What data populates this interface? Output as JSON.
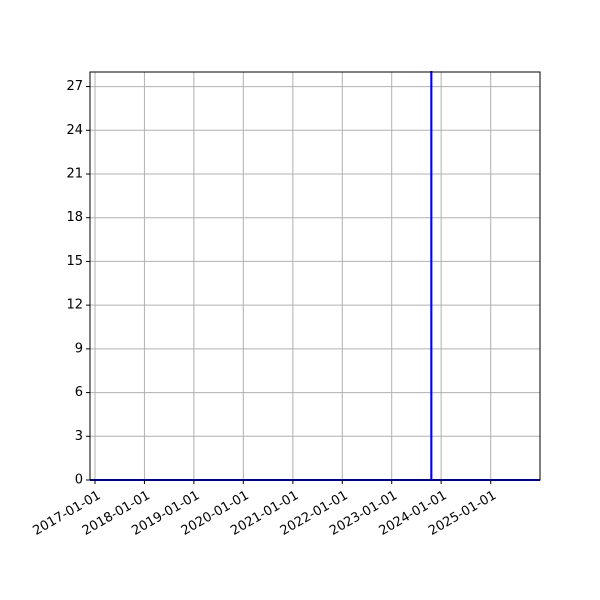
{
  "chart_data": {
    "type": "line",
    "title": "",
    "xlabel": "",
    "ylabel": "",
    "grid": true,
    "x_ticks": [
      "2017-01-01",
      "2018-01-01",
      "2019-01-01",
      "2020-01-01",
      "2021-01-01",
      "2022-01-01",
      "2023-01-01",
      "2024-01-01",
      "2025-01-01"
    ],
    "y_ticks": [
      0,
      3,
      6,
      9,
      12,
      15,
      18,
      21,
      24,
      27
    ],
    "xlim": [
      "2016-11-25",
      "2025-12-31"
    ],
    "ylim": [
      0,
      28
    ],
    "series": [
      {
        "color": "#0000ff",
        "points": [
          {
            "x": "2016-11-25",
            "y": 0
          },
          {
            "x": "2023-10-20",
            "y": 0
          },
          {
            "x": "2023-10-20",
            "y": 28
          },
          {
            "x": "2023-10-21",
            "y": 28
          },
          {
            "x": "2023-10-21",
            "y": 0
          },
          {
            "x": "2025-12-31",
            "y": 0
          }
        ]
      }
    ]
  }
}
